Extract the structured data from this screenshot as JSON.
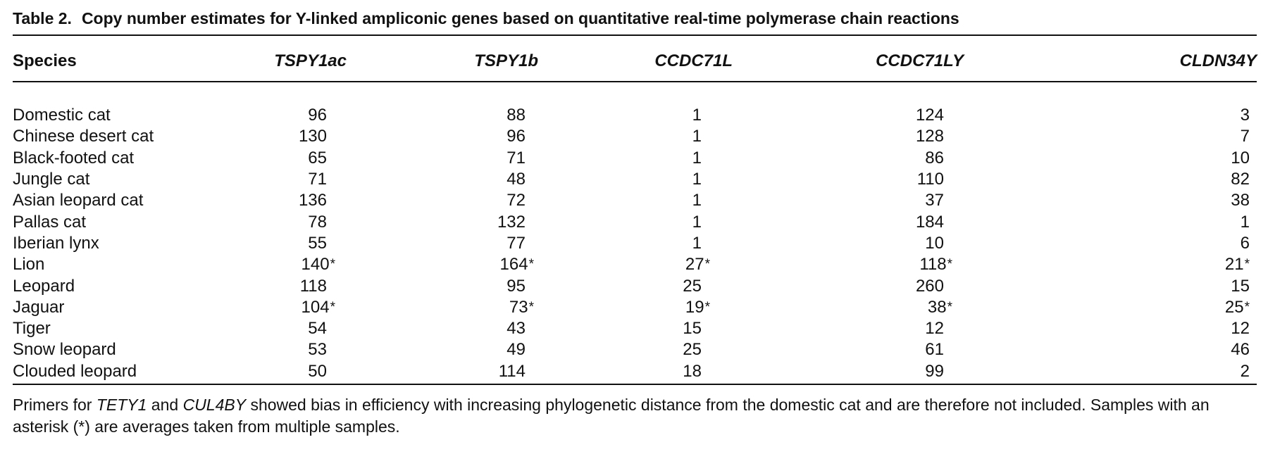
{
  "caption": {
    "label": "Table 2.",
    "text": "Copy number estimates for Y-linked ampliconic genes based on quantitative real-time polymerase chain reactions"
  },
  "table": {
    "headers": [
      "Species",
      "TSPY1ac",
      "TSPY1b",
      "CCDC71L",
      "CCDC71LY",
      "CLDN34Y"
    ],
    "rows": [
      {
        "species": "Domestic cat",
        "values": [
          "96",
          "88",
          "1",
          "124",
          "3"
        ]
      },
      {
        "species": "Chinese desert cat",
        "values": [
          "130",
          "96",
          "1",
          "128",
          "7"
        ]
      },
      {
        "species": "Black-footed cat",
        "values": [
          "65",
          "71",
          "1",
          "86",
          "10"
        ]
      },
      {
        "species": "Jungle cat",
        "values": [
          "71",
          "48",
          "1",
          "110",
          "82"
        ]
      },
      {
        "species": "Asian leopard cat",
        "values": [
          "136",
          "72",
          "1",
          "37",
          "38"
        ]
      },
      {
        "species": "Pallas cat",
        "values": [
          "78",
          "132",
          "1",
          "184",
          "1"
        ]
      },
      {
        "species": "Iberian lynx",
        "values": [
          "55",
          "77",
          "1",
          "10",
          "6"
        ]
      },
      {
        "species": "Lion",
        "values": [
          "140*",
          "164*",
          "27*",
          "118*",
          "21*"
        ]
      },
      {
        "species": "Leopard",
        "values": [
          "118",
          "95",
          "25",
          "260",
          "15"
        ]
      },
      {
        "species": "Jaguar",
        "values": [
          "104*",
          "73*",
          "19*",
          "38*",
          "25*"
        ]
      },
      {
        "species": "Tiger",
        "values": [
          "54",
          "43",
          "15",
          "12",
          "12"
        ]
      },
      {
        "species": "Snow leopard",
        "values": [
          "53",
          "49",
          "25",
          "61",
          "46"
        ]
      },
      {
        "species": "Clouded leopard",
        "values": [
          "50",
          "114",
          "18",
          "99",
          "2"
        ]
      }
    ]
  },
  "footnote": {
    "p1": "Primers for ",
    "gene1": "TETY1",
    "p2": " and ",
    "gene2": "CUL4BY",
    "p3": " showed bias in efficiency with increasing phylogenetic distance from the domestic cat and are therefore not included. Samples with an asterisk (*) are averages taken from multiple samples."
  }
}
